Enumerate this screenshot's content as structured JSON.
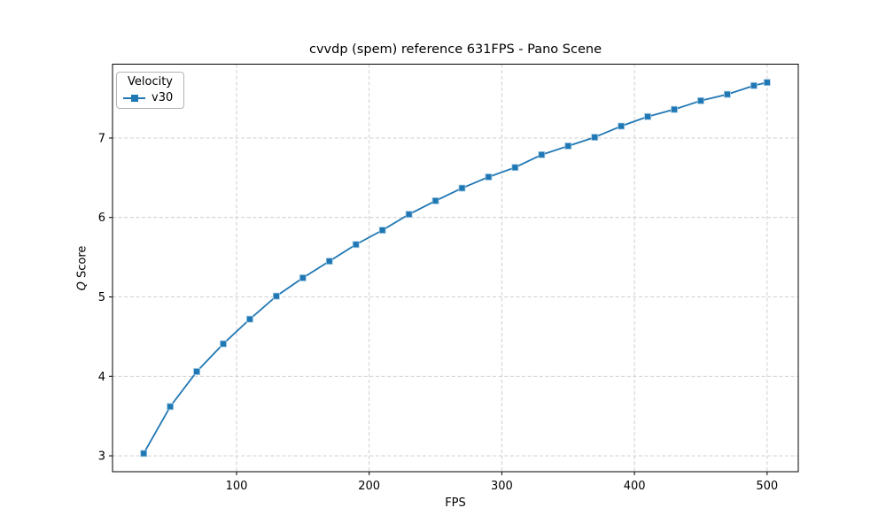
{
  "chart_data": {
    "type": "line",
    "title": "cvvdp (spem) reference 631FPS - Pano Scene",
    "xlabel": "FPS",
    "ylabel": "Q Score",
    "ylabel_parts": [
      {
        "text": "Q",
        "italic": true
      },
      {
        "text": " Score",
        "italic": false
      }
    ],
    "legend": {
      "title": "Velocity",
      "position": "upper-left",
      "entries": [
        {
          "label": "v30",
          "color": "#1f77b4",
          "marker": "square"
        }
      ]
    },
    "series": [
      {
        "name": "v30",
        "color": "#1f77b4",
        "marker": "square",
        "x": [
          30,
          50,
          70,
          90,
          110,
          130,
          150,
          170,
          190,
          210,
          230,
          250,
          270,
          290,
          310,
          330,
          350,
          370,
          390,
          410,
          430,
          450,
          470,
          490,
          500
        ],
        "y": [
          3.03,
          3.62,
          4.06,
          4.41,
          4.72,
          5.01,
          5.24,
          5.45,
          5.66,
          5.84,
          6.04,
          6.21,
          6.37,
          6.51,
          6.63,
          6.79,
          6.9,
          7.01,
          7.15,
          7.27,
          7.36,
          7.47,
          7.55,
          7.66,
          7.7
        ]
      }
    ],
    "xticks": [
      100,
      200,
      300,
      400,
      500
    ],
    "yticks": [
      3,
      4,
      5,
      6,
      7
    ],
    "xlim": [
      6.5,
      523.5
    ],
    "ylim": [
      2.8,
      7.93
    ],
    "grid": true,
    "grid_style": "dashed"
  },
  "colors": {
    "line": "#1f77b4",
    "grid": "#c9c9c9",
    "spine": "#000000",
    "text": "#000000",
    "legend_border": "#b3b3b3"
  }
}
